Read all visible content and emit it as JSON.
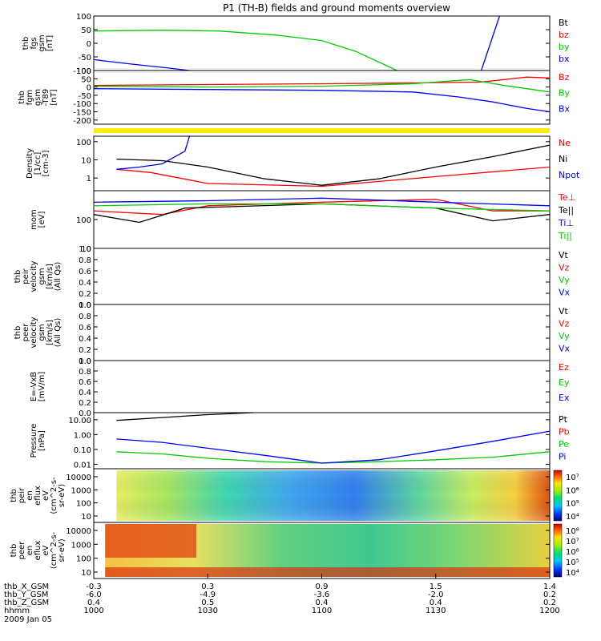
{
  "chart_data": {
    "type": "line",
    "title": "P1 (TH-B) fields and ground moments overview",
    "x_tick_labels": {
      "thb_X_GSM": [
        "-0.3",
        "0.3",
        "0.9",
        "1.5",
        "1.4"
      ],
      "thb_Y_GSM": [
        "-6.0",
        "-4.9",
        "-3.6",
        "-2.0",
        "0.2"
      ],
      "thb_Z_GSM": [
        "0.4",
        "0.5",
        "0.4",
        "0.4",
        "0.2"
      ],
      "hhmm": [
        "1000",
        "1030",
        "1100",
        "1130",
        "1200"
      ]
    },
    "x_row_labels": [
      "thb_X_GSM",
      "thb_Y_GSM",
      "thb_Z_GSM",
      "hhmm"
    ],
    "date_label": "2009 Jan 05",
    "x_hours": [
      10.0,
      10.5,
      11.0,
      11.5,
      12.0
    ],
    "panels": [
      {
        "id": "fgs",
        "ylabel": [
          "thb",
          "fgs",
          "gsm",
          "[nT]"
        ],
        "yscale": "linear",
        "ylim": [
          -100,
          100
        ],
        "yticks": [
          "100",
          "50",
          "0",
          "-50",
          "-100"
        ],
        "series": [
          {
            "name": "Bt",
            "color": "#000000"
          },
          {
            "name": "bz",
            "color": "#ff0000"
          },
          {
            "name": "by",
            "color": "#00cc00",
            "points": [
              [
                10.0,
                45
              ],
              [
                10.3,
                48
              ],
              [
                10.55,
                45
              ],
              [
                10.8,
                30
              ],
              [
                11.0,
                10
              ],
              [
                11.15,
                -30
              ],
              [
                11.33,
                -100
              ]
            ]
          },
          {
            "name": "bx",
            "color": "#0000ff",
            "points": [
              [
                10.0,
                -60
              ],
              [
                10.15,
                -75
              ],
              [
                10.32,
                -90
              ],
              [
                10.42,
                -100
              ]
            ],
            "extra": [
              [
                11.7,
                -100
              ],
              [
                11.78,
                100
              ]
            ]
          }
        ]
      },
      {
        "id": "fgm",
        "ylabel": [
          "thb",
          "fgm",
          "gsm",
          "-T89",
          "[nT]"
        ],
        "yscale": "linear",
        "ylim": [
          -225,
          100
        ],
        "yticks": [
          "100",
          "50",
          "0",
          "-50",
          "-100",
          "-150",
          "-200"
        ],
        "series": [
          {
            "name": "Bz",
            "color": "#ff0000",
            "points": [
              [
                10.0,
                10
              ],
              [
                10.5,
                15
              ],
              [
                11.0,
                20
              ],
              [
                11.4,
                25
              ],
              [
                11.7,
                30
              ],
              [
                11.9,
                60
              ],
              [
                12.0,
                55
              ]
            ]
          },
          {
            "name": "By",
            "color": "#00cc00",
            "points": [
              [
                10.0,
                5
              ],
              [
                10.5,
                0
              ],
              [
                11.0,
                5
              ],
              [
                11.4,
                20
              ],
              [
                11.65,
                45
              ],
              [
                11.8,
                10
              ],
              [
                12.0,
                -30
              ]
            ]
          },
          {
            "name": "Bx",
            "color": "#0000ff",
            "points": [
              [
                10.0,
                -10
              ],
              [
                10.5,
                -15
              ],
              [
                11.0,
                -20
              ],
              [
                11.4,
                -30
              ],
              [
                11.6,
                -60
              ],
              [
                11.75,
                -90
              ],
              [
                11.9,
                -130
              ],
              [
                12.0,
                -150
              ]
            ]
          }
        ]
      },
      {
        "id": "density",
        "ylabel": [
          "Density",
          "[1/cc]",
          "[cm-3]"
        ],
        "yscale": "log",
        "ylim": [
          0.2,
          200
        ],
        "yticks": [
          "100",
          "10",
          "1"
        ],
        "series": [
          {
            "name": "Ne",
            "color": "#ff0000",
            "points": [
              [
                10.1,
                3
              ],
              [
                10.25,
                2
              ],
              [
                10.5,
                0.5
              ],
              [
                11.0,
                0.35
              ],
              [
                11.5,
                1.2
              ],
              [
                12.0,
                4
              ]
            ]
          },
          {
            "name": "Ni",
            "color": "#000000",
            "points": [
              [
                10.1,
                11
              ],
              [
                10.3,
                9
              ],
              [
                10.5,
                4
              ],
              [
                10.75,
                0.9
              ],
              [
                11.0,
                0.4
              ],
              [
                11.25,
                0.9
              ],
              [
                11.5,
                4
              ],
              [
                11.75,
                15
              ],
              [
                12.0,
                65
              ]
            ]
          },
          {
            "name": "Npot",
            "color": "#0000ff",
            "points": [
              [
                10.1,
                3
              ],
              [
                10.2,
                4
              ],
              [
                10.3,
                6
              ],
              [
                10.4,
                30
              ],
              [
                10.42,
                200
              ]
            ]
          }
        ]
      },
      {
        "id": "temp",
        "ylabel": [
          "mom",
          "[eV]"
        ],
        "yscale": "log",
        "ylim": [
          10,
          1000
        ],
        "yticks": [
          "100",
          "10"
        ],
        "series": [
          {
            "name": "Te⊥",
            "color": "#ff0000",
            "points": [
              [
                10.0,
                200
              ],
              [
                10.3,
                150
              ],
              [
                10.5,
                300
              ],
              [
                11.0,
                400
              ],
              [
                11.5,
                500
              ],
              [
                11.75,
                200
              ],
              [
                12.0,
                200
              ]
            ]
          },
          {
            "name": "Te||",
            "color": "#000000",
            "points": [
              [
                10.0,
                150
              ],
              [
                10.2,
                80
              ],
              [
                10.4,
                250
              ],
              [
                11.0,
                350
              ],
              [
                11.5,
                250
              ],
              [
                11.75,
                90
              ],
              [
                12.0,
                150
              ]
            ]
          },
          {
            "name": "Ti⊥",
            "color": "#0000ff",
            "points": [
              [
                10.0,
                400
              ],
              [
                10.5,
                450
              ],
              [
                11.0,
                550
              ],
              [
                11.5,
                400
              ],
              [
                12.0,
                300
              ]
            ]
          },
          {
            "name": "Ti||",
            "color": "#00cc00",
            "points": [
              [
                10.0,
                300
              ],
              [
                10.5,
                350
              ],
              [
                11.0,
                350
              ],
              [
                11.5,
                250
              ],
              [
                12.0,
                200
              ]
            ]
          }
        ]
      },
      {
        "id": "velocity_i",
        "ylabel": [
          "thb",
          "peir",
          "velocity",
          "gsm",
          "[km/s]",
          "(All Qs)"
        ],
        "yscale": "linear",
        "ylim": [
          0,
          1.0
        ],
        "yticks": [
          "1.0",
          "0.8",
          "0.6",
          "0.4",
          "0.2",
          "0.0"
        ],
        "series": [
          {
            "name": "Vt",
            "color": "#000000"
          },
          {
            "name": "Vz",
            "color": "#ff0000"
          },
          {
            "name": "Vy",
            "color": "#00cc00"
          },
          {
            "name": "Vx",
            "color": "#0000ff"
          }
        ]
      },
      {
        "id": "velocity_e",
        "ylabel": [
          "thb",
          "peer",
          "velocity",
          "gsm",
          "[km/s]",
          "(All Qs)"
        ],
        "yscale": "linear",
        "ylim": [
          0,
          1.0
        ],
        "yticks": [
          "1.0",
          "0.8",
          "0.6",
          "0.4",
          "0.2",
          "0.0"
        ],
        "series": [
          {
            "name": "Vt",
            "color": "#000000"
          },
          {
            "name": "Vz",
            "color": "#ff0000"
          },
          {
            "name": "Vy",
            "color": "#00cc00"
          },
          {
            "name": "Vx",
            "color": "#0000ff"
          }
        ]
      },
      {
        "id": "efield",
        "ylabel": [
          "E=-VxB",
          "[mV/m]"
        ],
        "yscale": "linear",
        "ylim": [
          0,
          1.0
        ],
        "yticks": [
          "1.0",
          "0.8",
          "0.6",
          "0.4",
          "0.2",
          "0.0"
        ],
        "series": [
          {
            "name": "Ez",
            "color": "#ff0000"
          },
          {
            "name": "Ey",
            "color": "#00cc00"
          },
          {
            "name": "Ex",
            "color": "#0000ff"
          }
        ]
      },
      {
        "id": "pressure",
        "ylabel": [
          "Pressure",
          "[nPa]"
        ],
        "yscale": "log",
        "ylim": [
          0.005,
          30
        ],
        "yticks": [
          "10.00",
          "1.00",
          "0.10",
          "0.01"
        ],
        "series": [
          {
            "name": "Pt",
            "color": "#000000",
            "points": [
              [
                10.1,
                9
              ],
              [
                10.3,
                14
              ],
              [
                10.5,
                22
              ],
              [
                10.7,
                32
              ]
            ]
          },
          {
            "name": "Pb",
            "color": "#ff0000"
          },
          {
            "name": "Pe",
            "color": "#00cc00",
            "points": [
              [
                10.1,
                0.07
              ],
              [
                10.3,
                0.05
              ],
              [
                10.5,
                0.025
              ],
              [
                10.75,
                0.015
              ],
              [
                11.0,
                0.012
              ],
              [
                11.25,
                0.015
              ],
              [
                11.5,
                0.02
              ],
              [
                11.75,
                0.03
              ],
              [
                12.0,
                0.07
              ]
            ]
          },
          {
            "name": "Pi",
            "color": "#0000ff",
            "points": [
              [
                10.1,
                0.5
              ],
              [
                10.3,
                0.3
              ],
              [
                10.5,
                0.12
              ],
              [
                10.75,
                0.04
              ],
              [
                11.0,
                0.012
              ],
              [
                11.25,
                0.02
              ],
              [
                11.5,
                0.08
              ],
              [
                11.75,
                0.35
              ],
              [
                12.0,
                1.7
              ]
            ]
          }
        ]
      },
      {
        "id": "spec_ion",
        "ylabel": [
          "thb",
          "peir",
          "en",
          "eflux",
          "eV",
          "(cm^2-s-",
          "sr-eV)"
        ],
        "yscale": "log",
        "yticks": [
          "10000",
          "1000",
          "100",
          "10"
        ],
        "colorbar_ticks": [
          "10⁷",
          "10⁶",
          "10⁵",
          "10⁴"
        ]
      },
      {
        "id": "spec_ele",
        "ylabel": [
          "thb",
          "peer",
          "en",
          "eflux",
          "eV",
          "(cm^2-s-",
          "sr-eV)"
        ],
        "yscale": "log",
        "yticks": [
          "10000",
          "1000",
          "100",
          "10"
        ],
        "colorbar_ticks": [
          "10⁸",
          "10⁷",
          "10⁶",
          "10⁵",
          "10⁴"
        ]
      }
    ]
  }
}
